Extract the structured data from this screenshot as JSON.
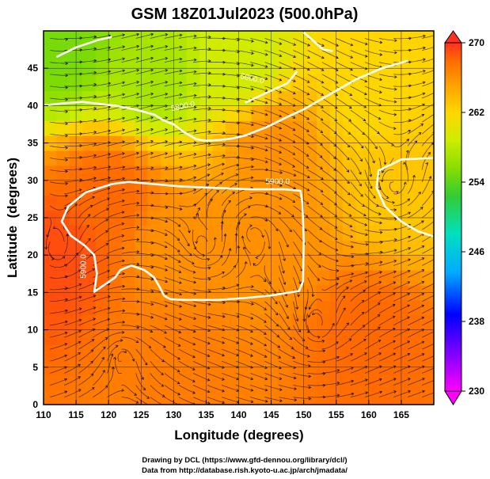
{
  "chart_data": {
    "type": "heatmap",
    "title": "GSM 18Z01Jul2023 (500.0hPa)",
    "xlabel": "Longitude (degrees)",
    "ylabel": "Latitude  (degrees)",
    "xlim": [
      110,
      170
    ],
    "ylim": [
      0,
      50
    ],
    "x_ticks": [
      110,
      115,
      120,
      125,
      130,
      135,
      140,
      145,
      150,
      155,
      160,
      165
    ],
    "y_ticks": [
      0,
      5,
      10,
      15,
      20,
      25,
      30,
      35,
      40,
      45
    ],
    "colorbar": {
      "min": 230,
      "max": 270,
      "ticks": [
        230,
        238,
        246,
        254,
        262,
        270
      ],
      "colors": [
        "#ff00ff",
        "#8800ff",
        "#0000ff",
        "#00aaff",
        "#00e0c0",
        "#33cc33",
        "#88dd00",
        "#ccee00",
        "#ffd700",
        "#ffa000",
        "#ff6a00",
        "#ff3020"
      ]
    },
    "contours": [
      {
        "label": "5900.0",
        "points": [
          [
            128.5,
            14.6
          ],
          [
            129.5,
            14.1
          ],
          [
            132,
            14
          ],
          [
            137,
            14
          ],
          [
            141.5,
            14.3
          ],
          [
            145,
            14.6
          ],
          [
            149.3,
            15.2
          ],
          [
            149.9,
            16.5
          ],
          [
            150,
            22
          ],
          [
            149.8,
            27
          ],
          [
            149.5,
            28.6
          ],
          [
            147,
            28.8
          ],
          [
            142,
            28.8
          ],
          [
            136,
            29
          ],
          [
            131,
            29.2
          ],
          [
            127,
            29.5
          ],
          [
            123,
            29.8
          ],
          [
            120.5,
            29.5
          ],
          [
            116.5,
            28.4
          ],
          [
            113.8,
            26.5
          ],
          [
            112.8,
            24.5
          ],
          [
            114.2,
            22.6
          ],
          [
            116.3,
            21.3
          ],
          [
            117.8,
            20
          ],
          [
            118.2,
            17.5
          ],
          [
            117.8,
            15.1
          ],
          [
            121,
            17
          ],
          [
            121.8,
            18
          ],
          [
            123.5,
            18.6
          ],
          [
            125.5,
            18
          ],
          [
            127,
            17
          ],
          [
            128,
            15.5
          ],
          [
            128.5,
            14.6
          ]
        ]
      },
      {
        "label": "5800.0",
        "points": [
          [
            112,
            46.5
          ],
          [
            115,
            47.8
          ],
          [
            118.5,
            48.8
          ],
          [
            120.5,
            49.2
          ]
        ]
      },
      {
        "label": "5800.0",
        "points": [
          [
            109.5,
            40
          ],
          [
            113,
            40.3
          ],
          [
            116,
            40.5
          ],
          [
            121,
            40
          ],
          [
            124,
            39.5
          ],
          [
            127,
            38.8
          ],
          [
            128.5,
            38
          ],
          [
            130,
            37.5
          ],
          [
            131.5,
            36.5
          ],
          [
            133.5,
            35.5
          ],
          [
            135,
            35.3
          ],
          [
            137,
            35.4
          ],
          [
            139,
            35.6
          ],
          [
            141,
            36
          ],
          [
            144.5,
            37.2
          ],
          [
            147.5,
            38.5
          ],
          [
            150,
            39.5
          ],
          [
            154,
            41.5
          ],
          [
            158,
            43.5
          ],
          [
            162,
            45
          ],
          [
            166,
            46
          ]
        ]
      },
      {
        "label": "5800.0",
        "points": [
          [
            141,
            40.4
          ],
          [
            145,
            42
          ],
          [
            147.5,
            43
          ],
          [
            149,
            44.6
          ]
        ]
      },
      {
        "label": "5800.0",
        "points": [
          [
            150,
            49.8
          ],
          [
            153,
            47.5
          ],
          [
            154.5,
            47.3
          ]
        ]
      },
      {
        "label": "5800.0",
        "points": [
          [
            170,
            33
          ],
          [
            165,
            32.8
          ],
          [
            161.5,
            31.3
          ],
          [
            161.2,
            29
          ],
          [
            162.5,
            26.5
          ],
          [
            165,
            24.5
          ],
          [
            167.5,
            23.2
          ],
          [
            170,
            22.5
          ]
        ]
      }
    ],
    "contour_labels": [
      "5900.0",
      "5900.0",
      "5800.0",
      "5800.0"
    ],
    "field_centers": [
      {
        "lon": 112,
        "lat": 20,
        "value": 269
      },
      {
        "lon": 120,
        "lat": 28,
        "value": 268
      },
      {
        "lon": 130,
        "lat": 22,
        "value": 266
      },
      {
        "lon": 145,
        "lat": 22,
        "value": 266
      },
      {
        "lon": 160,
        "lat": 10,
        "value": 268
      },
      {
        "lon": 165,
        "lat": 28,
        "value": 263
      },
      {
        "lon": 160,
        "lat": 42,
        "value": 262
      },
      {
        "lon": 140,
        "lat": 45,
        "value": 259
      },
      {
        "lon": 127,
        "lat": 44,
        "value": 257
      },
      {
        "lon": 113,
        "lat": 48,
        "value": 255
      },
      {
        "lon": 145,
        "lat": 35,
        "value": 266
      },
      {
        "lon": 130,
        "lat": 5,
        "value": 267
      }
    ]
  },
  "credits": {
    "line1": "Drawing by DCL (https://www.gfd-dennou.org/library/dcl/)",
    "line2": "Data from http://database.rish.kyoto-u.ac.jp/arch/jmadata/"
  }
}
